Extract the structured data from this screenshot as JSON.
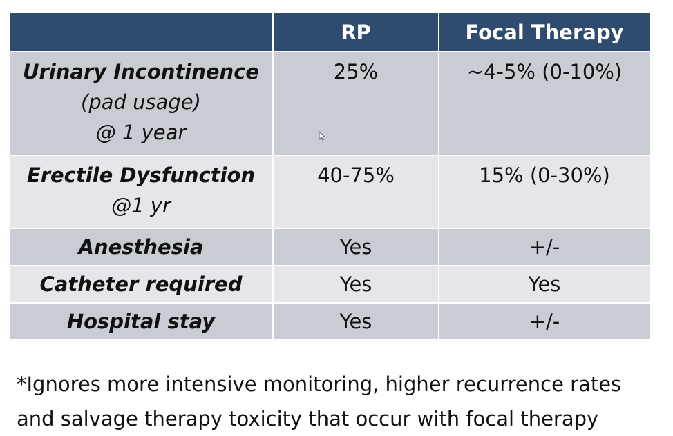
{
  "table": {
    "headers": [
      "",
      "RP",
      "Focal Therapy"
    ],
    "rows": [
      {
        "label_lines": [
          "Urinary Incontinence",
          "(pad usage)",
          "@ 1 year"
        ],
        "rp": "25%",
        "focal": "~4-5% (0-10%)"
      },
      {
        "label_lines": [
          "Erectile Dysfunction",
          "@1 yr"
        ],
        "rp": "40-75%",
        "focal": "15% (0-30%)"
      },
      {
        "label_lines": [
          "Anesthesia"
        ],
        "rp": "Yes",
        "focal": "+/-"
      },
      {
        "label_lines": [
          "Catheter required"
        ],
        "rp": "Yes",
        "focal": "Yes"
      },
      {
        "label_lines": [
          "Hospital stay"
        ],
        "rp": "Yes",
        "focal": "+/-"
      }
    ]
  },
  "footnote": {
    "line1": "*Ignores more intensive monitoring, higher recurrence rates",
    "line2": "and salvage therapy toxicity that occur with focal therapy"
  },
  "colors": {
    "header_bg": "#2f4b6e",
    "row_dark": "#c9ccd2",
    "row_light": "#e5e6ea"
  },
  "icons": {
    "cursor": "mouse-pointer-icon"
  }
}
